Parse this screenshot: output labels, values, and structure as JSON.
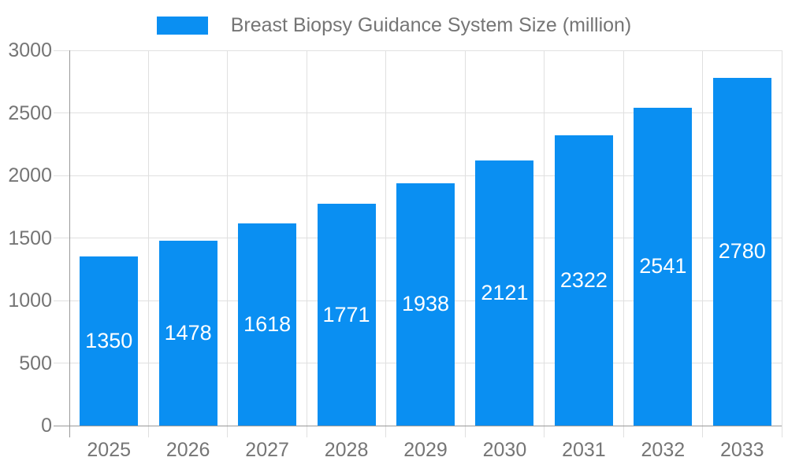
{
  "legend": {
    "label": "Breast Biopsy Guidance System Size (million)"
  },
  "chart_data": {
    "type": "bar",
    "title": "Breast Biopsy Guidance System Size (million)",
    "categories": [
      "2025",
      "2026",
      "2027",
      "2028",
      "2029",
      "2030",
      "2031",
      "2032",
      "2033"
    ],
    "values": [
      1350,
      1478,
      1618,
      1771,
      1938,
      2121,
      2322,
      2541,
      2780
    ],
    "xlabel": "",
    "ylabel": "",
    "ylim": [
      0,
      3000
    ],
    "yticks": [
      0,
      500,
      1000,
      1500,
      2000,
      2500,
      3000
    ],
    "grid": true,
    "legend_position": "top-center",
    "bar_label_position": "inside-center",
    "colors": {
      "bar": "#0a8ff2",
      "axis_line": "#999999",
      "gridline": "#e0e0e0",
      "axis_text": "#757575",
      "bar_label_text": "#ffffff",
      "background": "#ffffff"
    }
  }
}
